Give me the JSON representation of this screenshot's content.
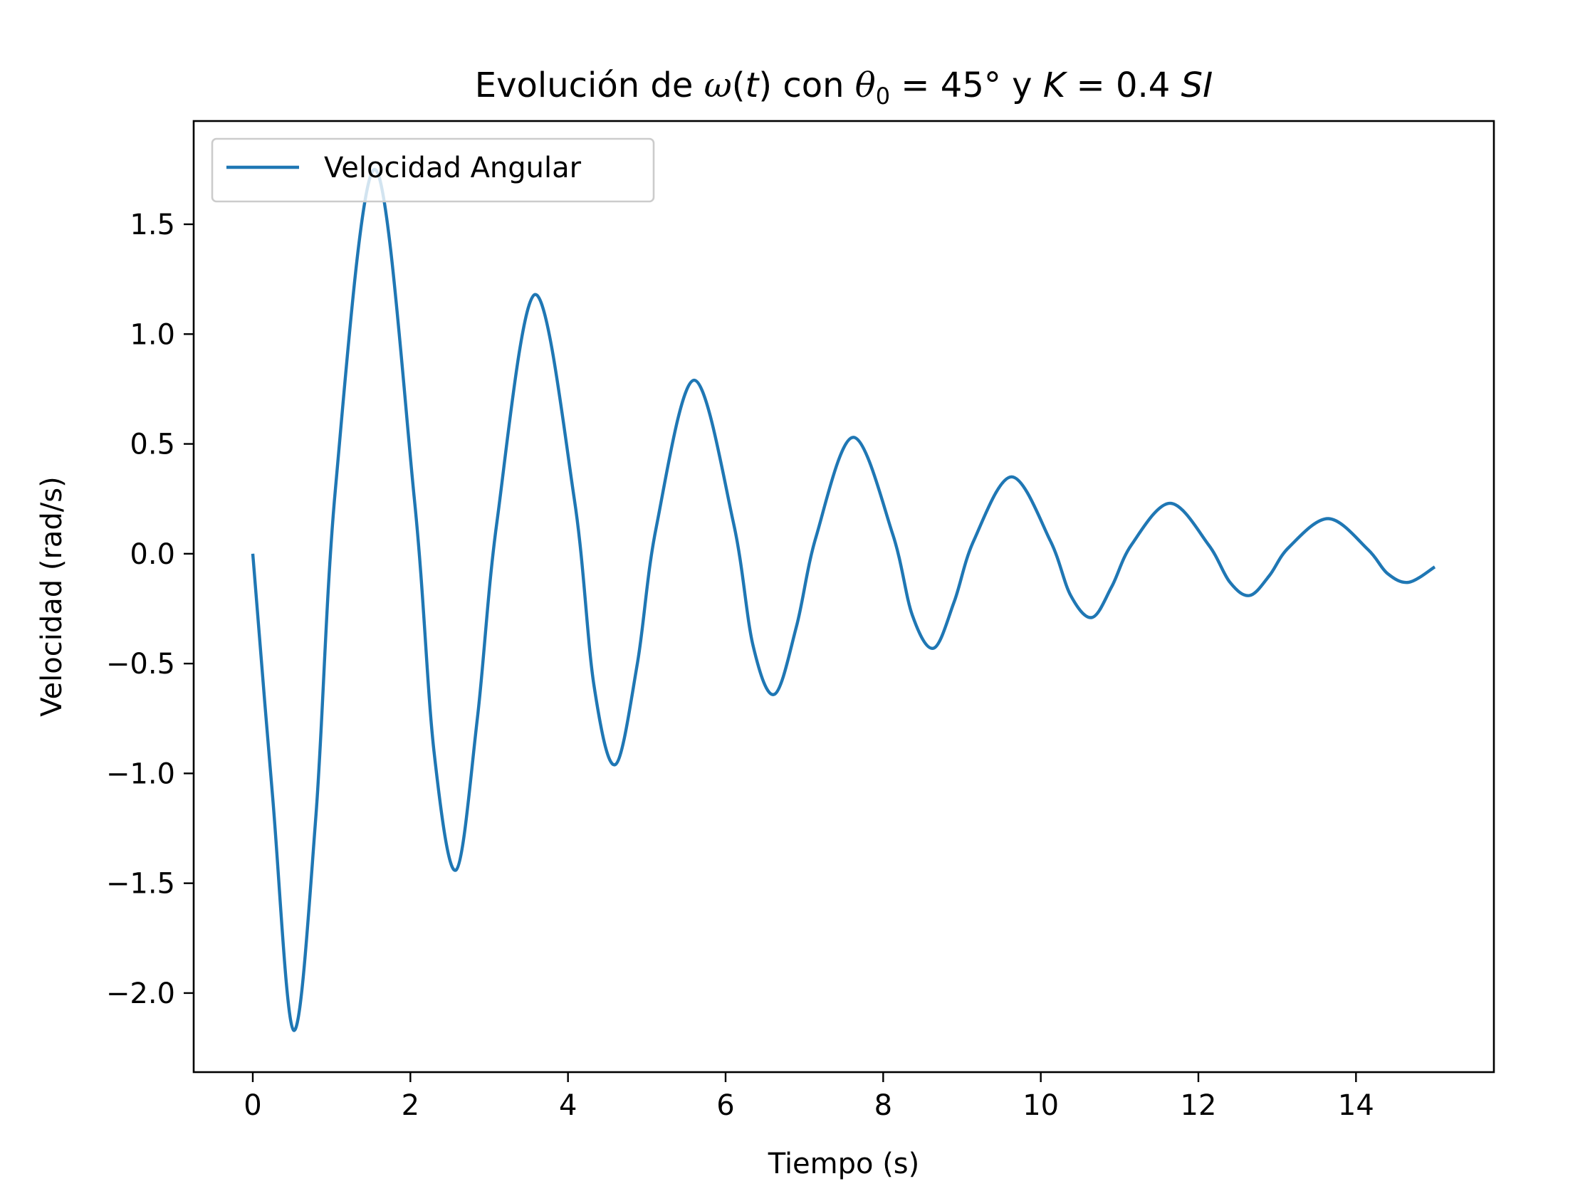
{
  "chart_data": {
    "type": "line",
    "title_parts": {
      "prefix": "Evolución de ",
      "omega": "ω",
      "open_paren": "(",
      "t": "t",
      "mid": ") con ",
      "theta": "θ",
      "theta_sub": "0",
      "eq1": " = 45° y ",
      "k": "K",
      "eq2": " = 0.4 ",
      "si": "SI"
    },
    "xlabel": "Tiempo (s)",
    "ylabel": "Velocidad (rad/s)",
    "xlim": [
      -0.75,
      15.75
    ],
    "ylim": [
      -2.36,
      1.97
    ],
    "xticks": [
      0,
      2,
      4,
      6,
      8,
      10,
      12,
      14
    ],
    "xtick_labels": [
      "0",
      "2",
      "4",
      "6",
      "8",
      "10",
      "12",
      "14"
    ],
    "yticks": [
      -2.0,
      -1.5,
      -1.0,
      -0.5,
      0.0,
      0.5,
      1.0,
      1.5
    ],
    "ytick_labels": [
      "−2.0",
      "−1.5",
      "−1.0",
      "−0.5",
      "0.0",
      "0.5",
      "1.0",
      "1.5"
    ],
    "legend_position": "upper left",
    "series": [
      {
        "name": "Velocidad Angular",
        "color": "#1f77b4",
        "x": [
          0.0,
          0.25,
          0.52,
          0.8,
          1.05,
          1.55,
          2.05,
          2.3,
          2.58,
          2.85,
          3.1,
          3.58,
          4.08,
          4.33,
          4.6,
          4.88,
          5.12,
          5.6,
          6.1,
          6.35,
          6.62,
          6.9,
          7.15,
          7.62,
          8.12,
          8.37,
          8.64,
          8.9,
          9.15,
          9.63,
          10.12,
          10.38,
          10.65,
          10.9,
          11.15,
          11.64,
          12.13,
          12.4,
          12.65,
          12.9,
          13.15,
          13.65,
          14.15,
          14.4,
          14.67,
          15.0
        ],
        "y": [
          0.0,
          -1.1,
          -2.17,
          -1.2,
          0.3,
          1.75,
          0.25,
          -0.9,
          -1.44,
          -0.75,
          0.15,
          1.18,
          0.25,
          -0.6,
          -0.96,
          -0.5,
          0.12,
          0.79,
          0.14,
          -0.42,
          -0.64,
          -0.33,
          0.08,
          0.53,
          0.09,
          -0.28,
          -0.43,
          -0.22,
          0.06,
          0.35,
          0.06,
          -0.19,
          -0.29,
          -0.15,
          0.04,
          0.23,
          0.04,
          -0.13,
          -0.19,
          -0.1,
          0.03,
          0.16,
          0.02,
          -0.09,
          -0.13,
          -0.06
        ]
      }
    ],
    "colors": {
      "axes": "#000000",
      "background": "#ffffff",
      "legend_border": "#cccccc"
    }
  }
}
